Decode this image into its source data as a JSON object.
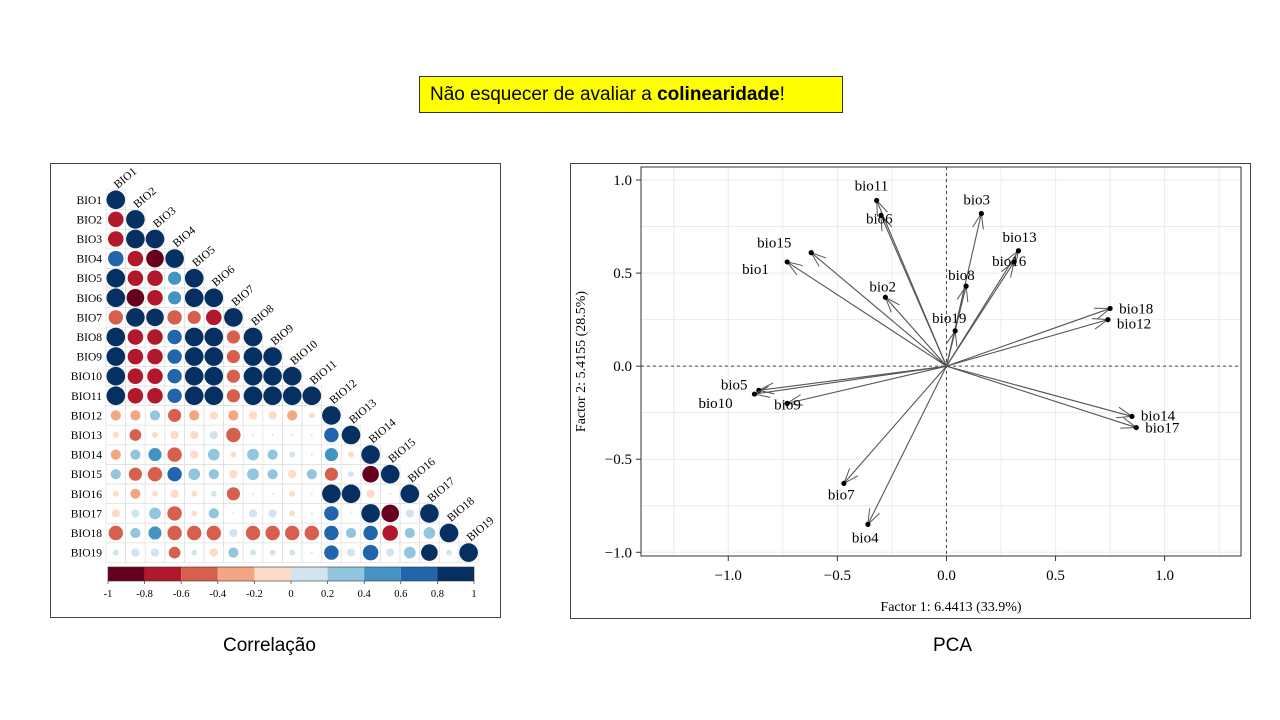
{
  "callout": {
    "prefix": "Não esquecer de avaliar a ",
    "bold": "colinearidade",
    "suffix": "!"
  },
  "captions": {
    "correlation": "Correlação",
    "pca": "PCA"
  },
  "colors": {
    "callout_bg": "#ffff00",
    "pos": "#053061",
    "neg": "#67001f",
    "arrow": "#555555"
  },
  "chart_data": [
    {
      "type": "heatmap",
      "variables": [
        "BIO1",
        "BIO2",
        "BIO3",
        "BIO4",
        "BIO5",
        "BIO6",
        "BIO7",
        "BIO8",
        "BIO9",
        "BIO10",
        "BIO11",
        "BIO12",
        "BIO13",
        "BIO14",
        "BIO15",
        "BIO16",
        "BIO17",
        "BIO18",
        "BIO19"
      ],
      "lower_triangle": [
        [
          1
        ],
        [
          -0.7,
          1
        ],
        [
          -0.7,
          1,
          1
        ],
        [
          0.7,
          -0.7,
          -0.9,
          1
        ],
        [
          1,
          -0.7,
          -0.7,
          0.5,
          1
        ],
        [
          1,
          -0.9,
          -0.7,
          0.5,
          1,
          1
        ],
        [
          -0.6,
          1,
          0.9,
          -0.6,
          -0.5,
          -0.7,
          1
        ],
        [
          1,
          -0.7,
          -0.7,
          0.6,
          1,
          1,
          -0.5,
          1
        ],
        [
          1,
          -0.7,
          -0.7,
          0.6,
          1,
          1,
          -0.5,
          1,
          1
        ],
        [
          1,
          -0.7,
          -0.7,
          0.6,
          1,
          1,
          -0.5,
          1,
          1,
          1
        ],
        [
          1,
          -0.7,
          -0.7,
          0.6,
          1,
          1,
          -0.5,
          1,
          1,
          1,
          1
        ],
        [
          -0.3,
          -0.3,
          0.3,
          -0.5,
          -0.3,
          -0.2,
          -0.3,
          -0.2,
          -0.2,
          -0.3,
          -0.1,
          1
        ],
        [
          -0.1,
          -0.4,
          -0.1,
          -0.2,
          -0.2,
          0.2,
          -0.6,
          0,
          0,
          0,
          0,
          0.6,
          1
        ],
        [
          -0.3,
          0.3,
          0.5,
          -0.6,
          -0.2,
          0.4,
          -0.1,
          0.4,
          0.3,
          0.1,
          0,
          0.5,
          -0.1,
          1
        ],
        [
          0.3,
          -0.5,
          -0.6,
          0.6,
          0.4,
          0.3,
          -0.2,
          0.4,
          0.3,
          -0.2,
          0.3,
          -0.5,
          0.1,
          -0.8,
          1
        ],
        [
          -0.1,
          -0.3,
          -0.1,
          -0.2,
          -0.1,
          0.1,
          -0.5,
          0,
          0,
          -0.1,
          0,
          1,
          1,
          -0.2,
          0,
          1
        ],
        [
          -0.2,
          0.2,
          0.4,
          -0.6,
          -0.1,
          0.3,
          0,
          0.2,
          0.2,
          -0.1,
          0,
          0.6,
          0,
          1,
          -0.9,
          0.2,
          1
        ],
        [
          -0.6,
          0.3,
          0.5,
          -0.6,
          -0.6,
          -0.6,
          0.2,
          -0.6,
          -0.6,
          -0.6,
          -0.6,
          0.6,
          0.3,
          0.6,
          -0.7,
          0.3,
          0.4,
          1
        ],
        [
          0.1,
          0.2,
          0.2,
          -0.4,
          0.1,
          -0.2,
          0.3,
          0.1,
          0.1,
          0.1,
          0,
          0.6,
          0.2,
          0.7,
          0.2,
          0.4,
          0.8,
          0.1,
          1
        ]
      ],
      "colorbar_ticks": [
        "-1",
        "-0.8",
        "-0.6",
        "-0.4",
        "-0.2",
        "0",
        "0.2",
        "0.4",
        "0.6",
        "0.8",
        "1"
      ],
      "colorbar_colors": [
        "#67001f",
        "#b2182b",
        "#d6604d",
        "#f4a582",
        "#fddbc7",
        "#d1e5f0",
        "#92c5de",
        "#4393c3",
        "#2166ac",
        "#053061"
      ]
    },
    {
      "type": "scatter",
      "subtype": "pca-biplot",
      "xlabel": "Factor 1: 6.4413 (33.9%)",
      "ylabel": "Factor 2: 5.4155 (28.5%)",
      "xlim": [
        -1.4,
        1.35
      ],
      "ylim": [
        -1.02,
        1.07
      ],
      "xticks": [
        "−1.0",
        "−0.5",
        "0.0",
        "0.5",
        "1.0"
      ],
      "yticks": [
        "1.0",
        "0.5",
        "0.0",
        "−0.5",
        "−1.0"
      ],
      "xtick_values": [
        -1.0,
        -0.5,
        0.0,
        0.5,
        1.0
      ],
      "ytick_values": [
        1.0,
        0.5,
        0.0,
        -0.5,
        -1.0
      ],
      "reference_lines": [
        0,
        0
      ],
      "points": [
        {
          "label": "bio11",
          "x": -0.32,
          "y": 0.89
        },
        {
          "label": "bio6",
          "x": -0.3,
          "y": 0.81
        },
        {
          "label": "bio3",
          "x": 0.16,
          "y": 0.82
        },
        {
          "label": "bio13",
          "x": 0.33,
          "y": 0.62
        },
        {
          "label": "bio16",
          "x": 0.31,
          "y": 0.56
        },
        {
          "label": "bio15",
          "x": -0.62,
          "y": 0.61
        },
        {
          "label": "bio1",
          "x": -0.73,
          "y": 0.56
        },
        {
          "label": "bio8",
          "x": 0.09,
          "y": 0.43
        },
        {
          "label": "bio2",
          "x": -0.28,
          "y": 0.37
        },
        {
          "label": "bio19",
          "x": 0.04,
          "y": 0.19
        },
        {
          "label": "bio18",
          "x": 0.75,
          "y": 0.31
        },
        {
          "label": "bio12",
          "x": 0.74,
          "y": 0.25
        },
        {
          "label": "bio5",
          "x": -0.86,
          "y": -0.13
        },
        {
          "label": "bio10",
          "x": -0.88,
          "y": -0.15
        },
        {
          "label": "bio9",
          "x": -0.73,
          "y": -0.2
        },
        {
          "label": "bio14",
          "x": 0.85,
          "y": -0.27
        },
        {
          "label": "bio17",
          "x": 0.87,
          "y": -0.33
        },
        {
          "label": "bio7",
          "x": -0.47,
          "y": -0.63
        },
        {
          "label": "bio4",
          "x": -0.36,
          "y": -0.85
        }
      ]
    }
  ]
}
